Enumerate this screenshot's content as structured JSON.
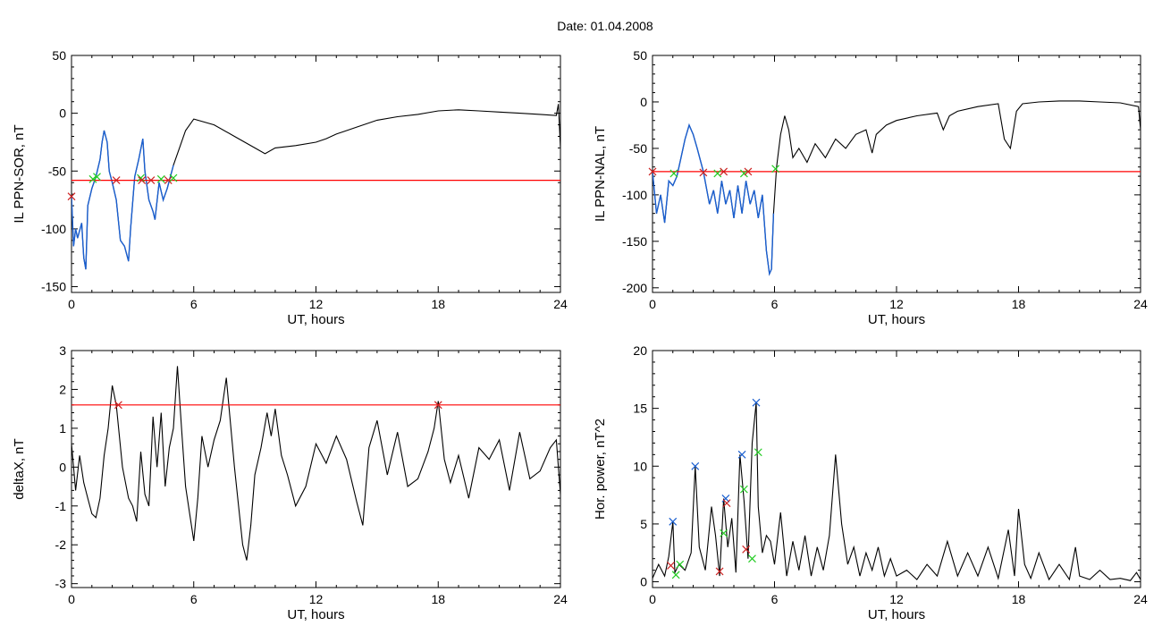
{
  "header": {
    "date_label": "Date:  01.04.2008"
  },
  "colors": {
    "trace": "#000000",
    "threshold": "#ff0000",
    "highlight": "#1a5fd0",
    "marker_green": "#22cc22",
    "marker_red": "#cc2222",
    "marker_blue": "#1a5fd0"
  },
  "chart_data": [
    {
      "id": "sor",
      "type": "line",
      "title": "",
      "xlabel": "UT, hours",
      "ylabel": "IL PPN-SOR, nT",
      "xlim": [
        0,
        24
      ],
      "ylim": [
        -155,
        50
      ],
      "xticks": [
        0,
        6,
        12,
        18,
        24
      ],
      "yticks": [
        50,
        0,
        -50,
        -100,
        -150
      ],
      "threshold": -58,
      "highlight_ranges": [
        [
          0,
          5.0
        ]
      ],
      "series": [
        {
          "x": [
            0,
            0.1,
            0.2,
            0.3,
            0.5,
            0.6,
            0.7,
            0.8,
            1.0,
            1.2,
            1.4,
            1.5,
            1.6,
            1.75,
            1.85,
            2.0,
            2.2,
            2.4,
            2.6,
            2.8,
            2.9,
            3.1,
            3.3,
            3.5,
            3.6,
            3.8,
            4.0,
            4.1,
            4.3,
            4.5,
            4.7,
            5.0,
            5.3,
            5.6,
            6.0,
            7.0,
            8.0,
            9.0,
            9.5,
            10.0,
            11.0,
            12.0,
            12.5,
            13.0,
            14.0,
            15.0,
            16.0,
            17.0,
            18.0,
            19.0,
            20.0,
            21.0,
            22.0,
            23.0,
            23.8,
            23.9,
            24.0
          ],
          "y": [
            -72,
            -115,
            -100,
            -108,
            -95,
            -125,
            -135,
            -80,
            -65,
            -55,
            -40,
            -25,
            -15,
            -25,
            -50,
            -60,
            -75,
            -110,
            -115,
            -128,
            -100,
            -55,
            -40,
            -22,
            -50,
            -75,
            -85,
            -92,
            -60,
            -75,
            -65,
            -45,
            -30,
            -15,
            -5,
            -10,
            -20,
            -30,
            -35,
            -30,
            -28,
            -25,
            -22,
            -18,
            -12,
            -6,
            -3,
            -1,
            2,
            3,
            2,
            1,
            0,
            -1,
            -2,
            8,
            -30
          ]
        }
      ],
      "markers": [
        {
          "x": 0,
          "y": -72,
          "color": "red"
        },
        {
          "x": 1.05,
          "y": -57,
          "color": "green"
        },
        {
          "x": 1.25,
          "y": -55,
          "color": "green"
        },
        {
          "x": 2.2,
          "y": -58,
          "color": "red"
        },
        {
          "x": 3.4,
          "y": -56,
          "color": "green"
        },
        {
          "x": 3.45,
          "y": -58,
          "color": "red"
        },
        {
          "x": 3.9,
          "y": -58,
          "color": "red"
        },
        {
          "x": 4.4,
          "y": -57,
          "color": "green"
        },
        {
          "x": 4.75,
          "y": -58,
          "color": "red"
        },
        {
          "x": 5.0,
          "y": -56,
          "color": "green"
        }
      ]
    },
    {
      "id": "nal",
      "type": "line",
      "title": "",
      "xlabel": "UT, hours",
      "ylabel": "IL PPN-NAL, nT",
      "xlim": [
        0,
        24
      ],
      "ylim": [
        -205,
        50
      ],
      "xticks": [
        0,
        6,
        12,
        18,
        24
      ],
      "yticks": [
        50,
        0,
        -50,
        -100,
        -150,
        -200
      ],
      "threshold": -75,
      "highlight_ranges": [
        [
          0,
          6.05
        ]
      ],
      "series": [
        {
          "x": [
            0,
            0.2,
            0.4,
            0.6,
            0.8,
            1.0,
            1.2,
            1.4,
            1.6,
            1.8,
            2.0,
            2.2,
            2.5,
            2.8,
            3.0,
            3.2,
            3.4,
            3.6,
            3.8,
            4.0,
            4.2,
            4.4,
            4.6,
            4.8,
            5.0,
            5.2,
            5.4,
            5.6,
            5.75,
            5.85,
            5.95,
            6.1,
            6.3,
            6.5,
            6.7,
            6.9,
            7.2,
            7.6,
            8.0,
            8.5,
            9.0,
            9.5,
            10.0,
            10.5,
            10.8,
            11.0,
            11.5,
            12.0,
            13.0,
            14.0,
            14.3,
            14.6,
            15.0,
            16.0,
            17.0,
            17.3,
            17.6,
            17.9,
            18.2,
            19.0,
            20.0,
            21.0,
            22.0,
            23.0,
            23.9,
            24.0
          ],
          "y": [
            -75,
            -120,
            -100,
            -130,
            -85,
            -90,
            -80,
            -60,
            -40,
            -25,
            -35,
            -50,
            -75,
            -110,
            -95,
            -120,
            -85,
            -110,
            -95,
            -125,
            -90,
            -120,
            -85,
            -110,
            -95,
            -125,
            -100,
            -160,
            -185,
            -180,
            -120,
            -70,
            -35,
            -15,
            -30,
            -60,
            -50,
            -65,
            -45,
            -60,
            -40,
            -50,
            -35,
            -30,
            -55,
            -35,
            -25,
            -20,
            -15,
            -12,
            -30,
            -15,
            -10,
            -5,
            -2,
            -40,
            -50,
            -10,
            -2,
            0,
            1,
            1,
            0,
            -1,
            -5,
            -30
          ]
        }
      ],
      "markers": [
        {
          "x": 0,
          "y": -75,
          "color": "red"
        },
        {
          "x": 1.05,
          "y": -77,
          "color": "green"
        },
        {
          "x": 2.5,
          "y": -76,
          "color": "red"
        },
        {
          "x": 3.2,
          "y": -77,
          "color": "green"
        },
        {
          "x": 3.5,
          "y": -75,
          "color": "red"
        },
        {
          "x": 4.5,
          "y": -77,
          "color": "green"
        },
        {
          "x": 4.7,
          "y": -75,
          "color": "red"
        },
        {
          "x": 6.05,
          "y": -72,
          "color": "green"
        }
      ]
    },
    {
      "id": "deltax",
      "type": "line",
      "title": "",
      "xlabel": "UT, hours",
      "ylabel": "deltaX, nT",
      "xlim": [
        0,
        24
      ],
      "ylim": [
        -3.1,
        3.0
      ],
      "xticks": [
        0,
        6,
        12,
        18,
        24
      ],
      "yticks": [
        3,
        2,
        1,
        0,
        -1,
        -2,
        -3
      ],
      "threshold": 1.6,
      "highlight_ranges": [],
      "series": [
        {
          "x": [
            0,
            0.2,
            0.4,
            0.6,
            0.8,
            1.0,
            1.2,
            1.4,
            1.6,
            1.8,
            2.0,
            2.2,
            2.5,
            2.8,
            3.0,
            3.2,
            3.4,
            3.6,
            3.8,
            4.0,
            4.2,
            4.4,
            4.6,
            4.8,
            5.0,
            5.2,
            5.4,
            5.6,
            5.8,
            6.0,
            6.2,
            6.4,
            6.7,
            7.0,
            7.3,
            7.6,
            8.0,
            8.2,
            8.4,
            8.6,
            8.8,
            9.0,
            9.3,
            9.6,
            9.8,
            10.0,
            10.3,
            10.6,
            11.0,
            11.5,
            12.0,
            12.5,
            13.0,
            13.5,
            14.0,
            14.3,
            14.6,
            15.0,
            15.5,
            16.0,
            16.5,
            17.0,
            17.5,
            17.8,
            18.0,
            18.3,
            18.6,
            19.0,
            19.5,
            20.0,
            20.5,
            21.0,
            21.5,
            22.0,
            22.5,
            23.0,
            23.5,
            23.8,
            24.0
          ],
          "y": [
            0.6,
            -0.6,
            0.3,
            -0.4,
            -0.8,
            -1.2,
            -1.3,
            -0.8,
            0.3,
            1.0,
            2.1,
            1.6,
            0.0,
            -0.8,
            -1.0,
            -1.4,
            0.4,
            -0.7,
            -1.0,
            1.3,
            0.0,
            1.4,
            -0.5,
            0.5,
            1.0,
            2.6,
            1.0,
            -0.5,
            -1.2,
            -1.9,
            -0.8,
            0.8,
            0.0,
            0.7,
            1.2,
            2.3,
            0.0,
            -1.0,
            -2.0,
            -2.4,
            -1.5,
            -0.2,
            0.5,
            1.4,
            0.8,
            1.5,
            0.3,
            -0.2,
            -1.0,
            -0.5,
            0.6,
            0.1,
            0.8,
            0.2,
            -0.9,
            -1.5,
            0.5,
            1.2,
            -0.2,
            0.9,
            -0.5,
            -0.3,
            0.4,
            1.0,
            1.7,
            0.2,
            -0.4,
            0.3,
            -0.8,
            0.5,
            0.2,
            0.7,
            -0.6,
            0.9,
            -0.3,
            -0.1,
            0.5,
            0.7,
            -0.7
          ]
        }
      ],
      "markers": [
        {
          "x": 2.3,
          "y": 1.6,
          "color": "red"
        },
        {
          "x": 18.0,
          "y": 1.6,
          "color": "red"
        }
      ]
    },
    {
      "id": "power",
      "type": "line",
      "title": "",
      "xlabel": "UT, hours",
      "ylabel": "Hor. power, nT^2",
      "xlim": [
        0,
        24
      ],
      "ylim": [
        -0.5,
        20
      ],
      "xticks": [
        0,
        6,
        12,
        18,
        24
      ],
      "yticks": [
        20,
        15,
        10,
        5,
        0
      ],
      "threshold": null,
      "highlight_ranges": [],
      "series": [
        {
          "x": [
            0,
            0.3,
            0.6,
            0.8,
            1.0,
            1.1,
            1.3,
            1.6,
            1.9,
            2.1,
            2.3,
            2.6,
            2.9,
            3.1,
            3.3,
            3.5,
            3.7,
            3.9,
            4.1,
            4.3,
            4.5,
            4.7,
            4.9,
            5.1,
            5.2,
            5.4,
            5.6,
            5.8,
            6.0,
            6.3,
            6.6,
            6.9,
            7.2,
            7.5,
            7.8,
            8.1,
            8.4,
            8.7,
            9.0,
            9.3,
            9.6,
            9.9,
            10.2,
            10.5,
            10.8,
            11.1,
            11.4,
            11.7,
            12.0,
            12.5,
            13.0,
            13.5,
            14.0,
            14.5,
            15.0,
            15.5,
            16.0,
            16.5,
            17.0,
            17.5,
            17.8,
            18.0,
            18.3,
            18.6,
            19.0,
            19.5,
            20.0,
            20.5,
            20.8,
            21.0,
            21.5,
            22.0,
            22.5,
            23.0,
            23.5,
            23.8,
            24.0
          ],
          "y": [
            0.3,
            1.5,
            0.5,
            2.2,
            5.2,
            0.8,
            1.5,
            1.0,
            2.5,
            10.0,
            3.0,
            1.0,
            6.5,
            4.0,
            0.5,
            7.2,
            3.0,
            5.5,
            0.8,
            11.0,
            7.0,
            2.0,
            12.0,
            15.5,
            6.5,
            2.5,
            4.0,
            3.5,
            1.5,
            6.0,
            0.5,
            3.5,
            1.0,
            4.0,
            0.5,
            3.0,
            1.0,
            4.0,
            11.0,
            5.0,
            1.5,
            3.0,
            0.5,
            2.5,
            1.0,
            3.0,
            0.5,
            2.0,
            0.5,
            1.0,
            0.2,
            1.5,
            0.5,
            3.5,
            0.5,
            2.5,
            0.5,
            3.0,
            0.3,
            4.5,
            0.5,
            6.3,
            1.5,
            0.3,
            2.5,
            0.2,
            1.5,
            0.2,
            3.0,
            0.5,
            0.2,
            1.0,
            0.2,
            0.3,
            0.1,
            0.8,
            0.2
          ]
        }
      ],
      "markers": [
        {
          "x": 0.9,
          "y": 1.4,
          "color": "red"
        },
        {
          "x": 1.0,
          "y": 5.2,
          "color": "blue"
        },
        {
          "x": 1.15,
          "y": 0.6,
          "color": "green"
        },
        {
          "x": 1.35,
          "y": 1.5,
          "color": "green"
        },
        {
          "x": 2.1,
          "y": 10.0,
          "color": "blue"
        },
        {
          "x": 3.3,
          "y": 0.9,
          "color": "red"
        },
        {
          "x": 3.5,
          "y": 4.2,
          "color": "green"
        },
        {
          "x": 3.6,
          "y": 7.2,
          "color": "blue"
        },
        {
          "x": 3.65,
          "y": 6.8,
          "color": "red"
        },
        {
          "x": 4.4,
          "y": 11.0,
          "color": "blue"
        },
        {
          "x": 4.5,
          "y": 8.0,
          "color": "green"
        },
        {
          "x": 4.6,
          "y": 2.8,
          "color": "red"
        },
        {
          "x": 4.9,
          "y": 2.0,
          "color": "green"
        },
        {
          "x": 5.1,
          "y": 15.5,
          "color": "blue"
        },
        {
          "x": 5.2,
          "y": 11.2,
          "color": "green"
        }
      ]
    }
  ]
}
